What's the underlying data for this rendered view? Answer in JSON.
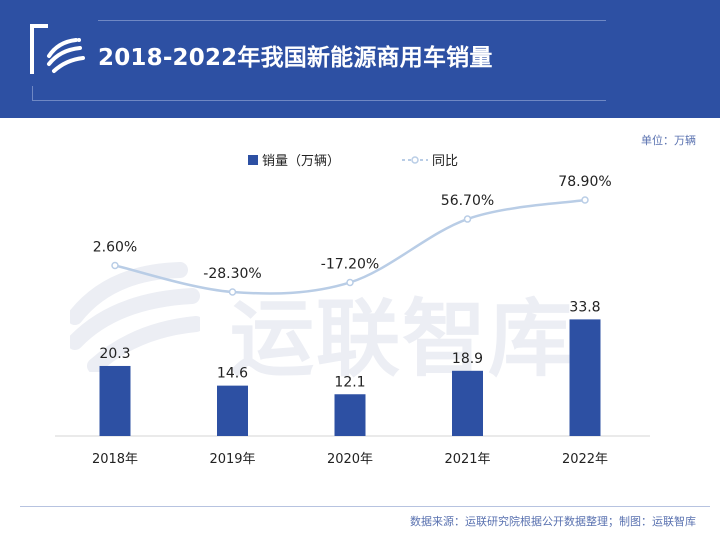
{
  "header": {
    "title": "2018-2022年我国新能源商用车销量"
  },
  "unit_label": "单位：万辆",
  "watermark_text": "运联智库",
  "source_text": "数据来源：运联研究院根据公开数据整理；制图：运联智库",
  "colors": {
    "header_bg": "#2d50a3",
    "bar": "#2d50a3",
    "line": "#b9cde6",
    "text": "#222222"
  },
  "chart_data": {
    "type": "bar",
    "categories": [
      "2018年",
      "2019年",
      "2020年",
      "2021年",
      "2022年"
    ],
    "series": [
      {
        "name": "销量（万辆）",
        "type": "bar",
        "values": [
          20.3,
          14.6,
          12.1,
          18.9,
          33.8
        ],
        "labels": [
          "20.3",
          "14.6",
          "12.1",
          "18.9",
          "33.8"
        ]
      },
      {
        "name": "同比",
        "type": "line",
        "values": [
          2.6,
          -28.3,
          -17.2,
          56.7,
          78.9
        ],
        "labels": [
          "2.60%",
          "-28.30%",
          "-17.20%",
          "56.70%",
          "78.90%"
        ]
      }
    ],
    "legend_position": "top-center",
    "grid": false
  }
}
